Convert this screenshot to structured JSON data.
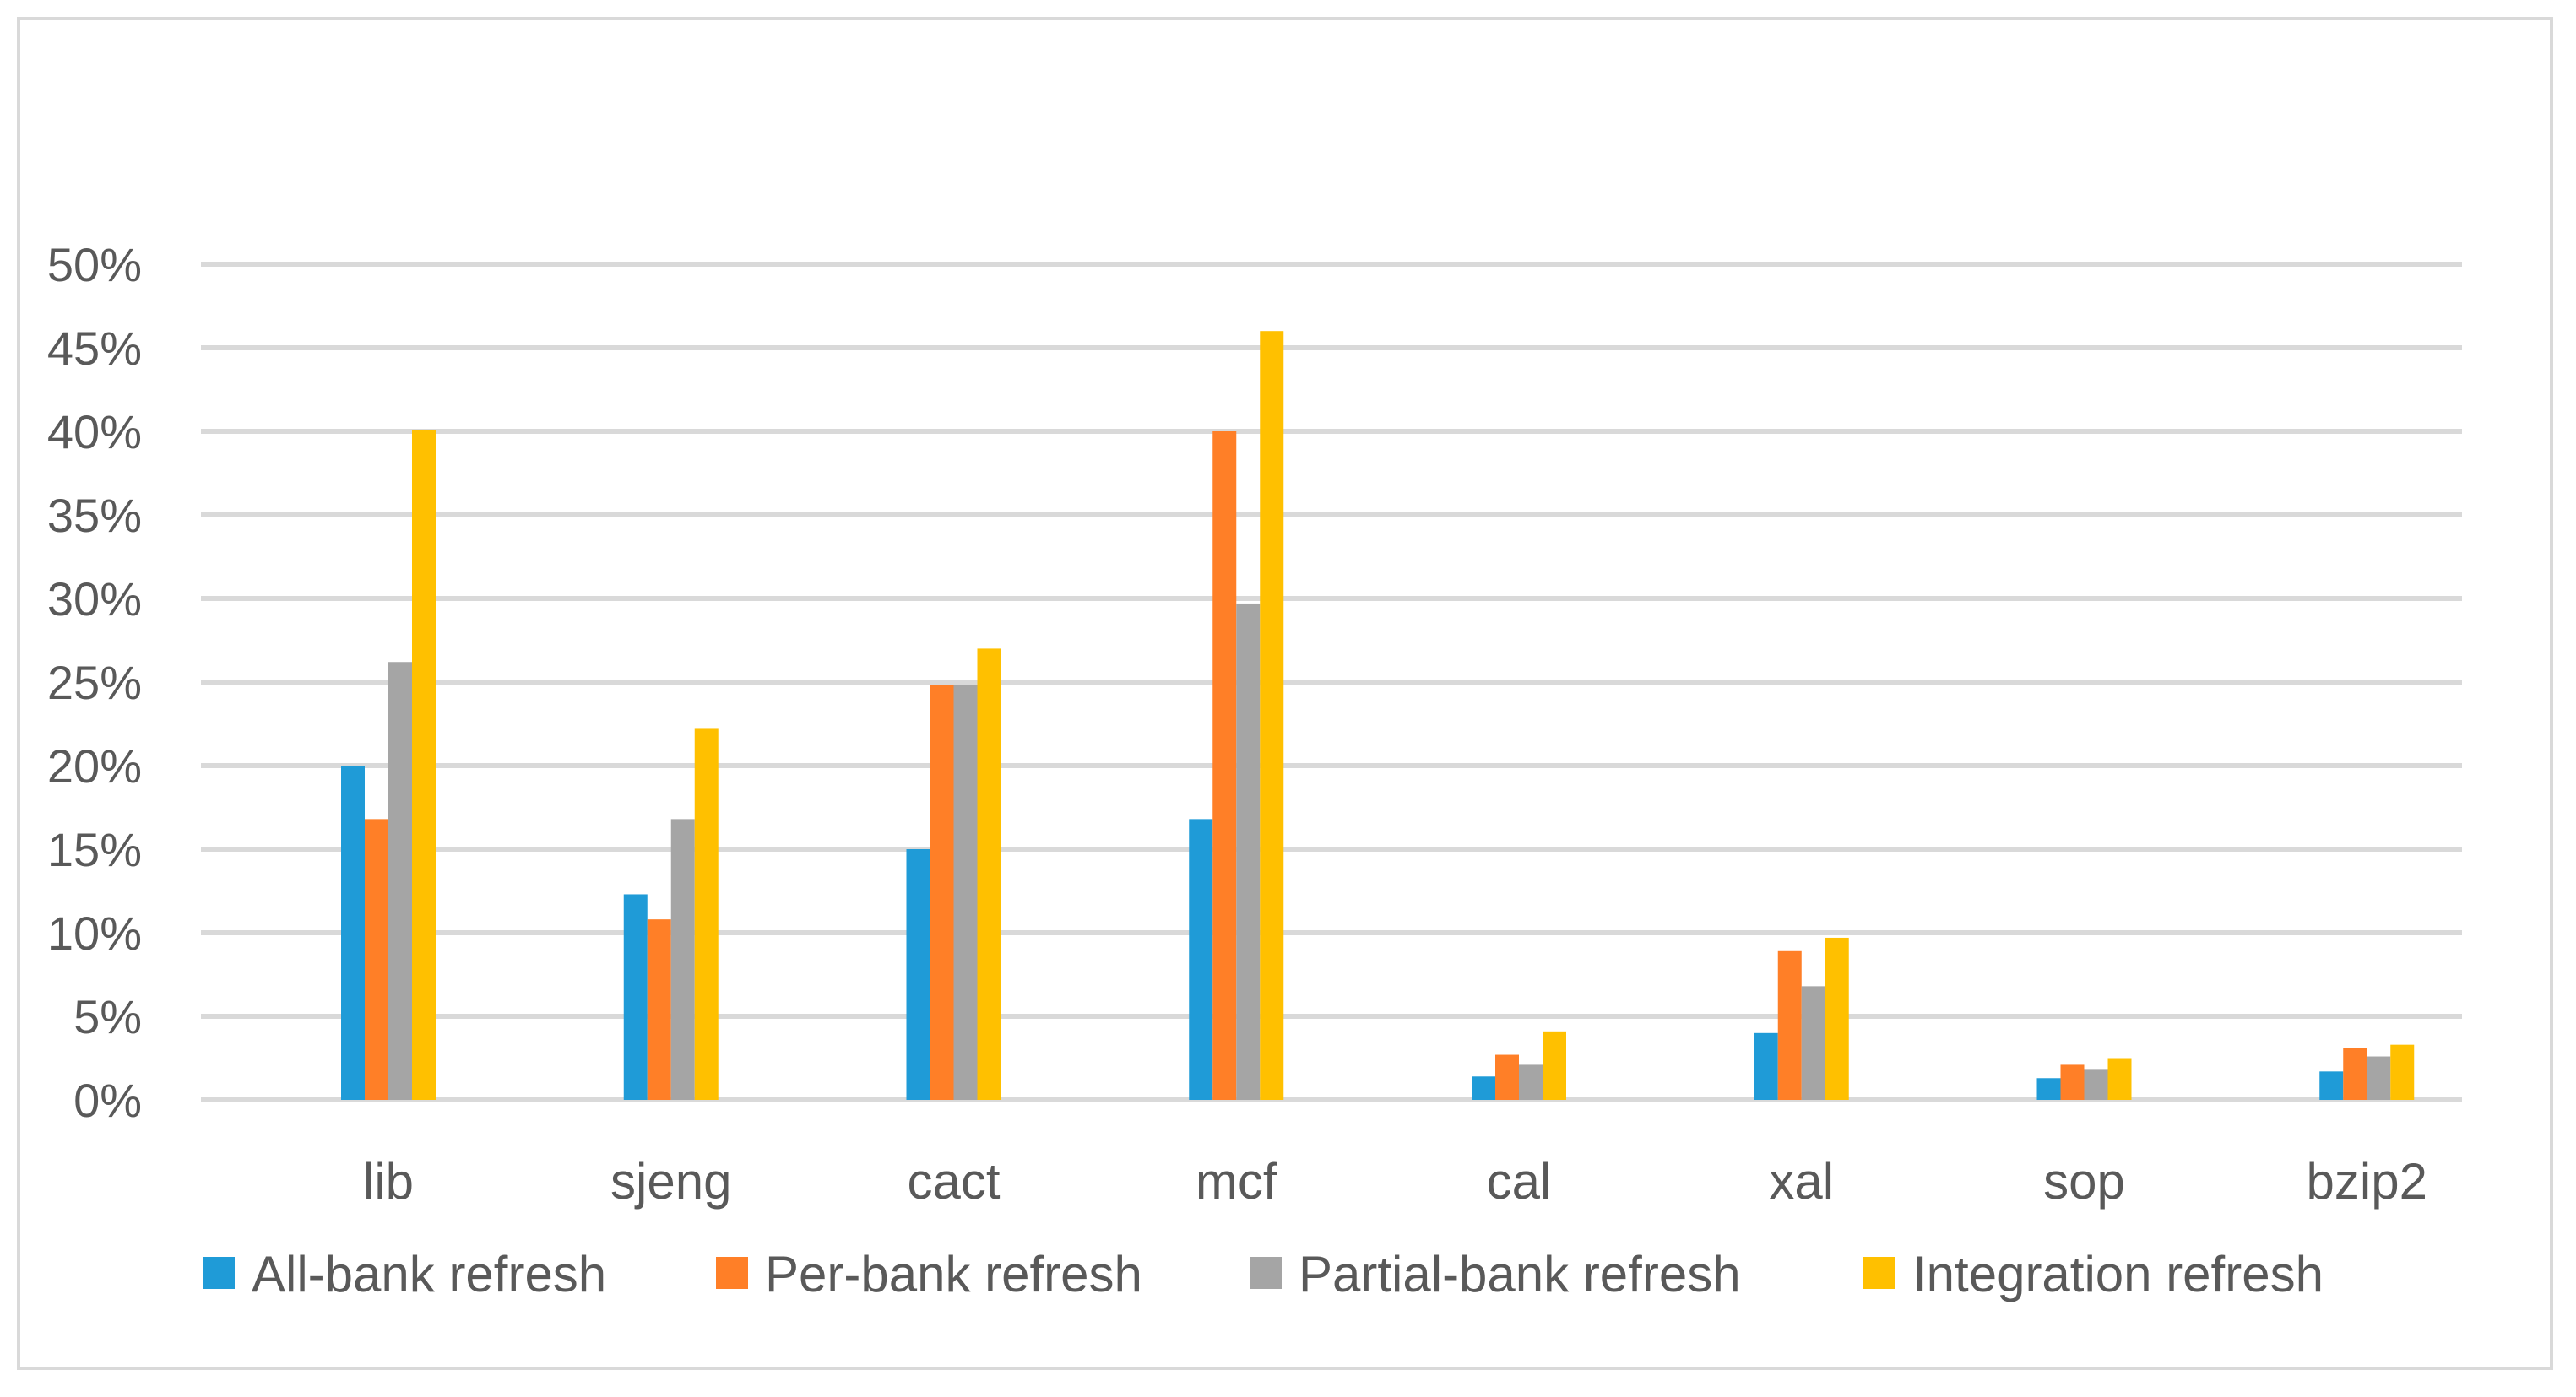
{
  "chart_data": {
    "type": "bar",
    "categories": [
      "lib",
      "sjeng",
      "cact",
      "mcf",
      "cal",
      "xal",
      "sop",
      "bzip2"
    ],
    "series": [
      {
        "name": "All-bank refresh",
        "color": "#1f9bd7",
        "values": [
          0.2,
          0.123,
          0.15,
          0.168,
          0.014,
          0.04,
          0.013,
          0.017
        ]
      },
      {
        "name": "Per-bank refresh",
        "color": "#ff7f27",
        "values": [
          0.168,
          0.108,
          0.248,
          0.4,
          0.027,
          0.089,
          0.021,
          0.031
        ]
      },
      {
        "name": "Partial-bank refresh",
        "color": "#a5a5a5",
        "values": [
          0.262,
          0.168,
          0.248,
          0.297,
          0.021,
          0.068,
          0.018,
          0.026
        ]
      },
      {
        "name": "Integration refresh",
        "color": "#ffc000",
        "values": [
          0.401,
          0.222,
          0.27,
          0.46,
          0.041,
          0.097,
          0.025,
          0.033
        ]
      }
    ],
    "y_ticks": [
      "0%",
      "5%",
      "10%",
      "15%",
      "20%",
      "25%",
      "30%",
      "35%",
      "40%",
      "45%",
      "50%"
    ],
    "ylim": [
      0,
      0.5
    ],
    "grid": true,
    "legend_position": "bottom",
    "title": "",
    "xlabel": "",
    "ylabel": ""
  }
}
